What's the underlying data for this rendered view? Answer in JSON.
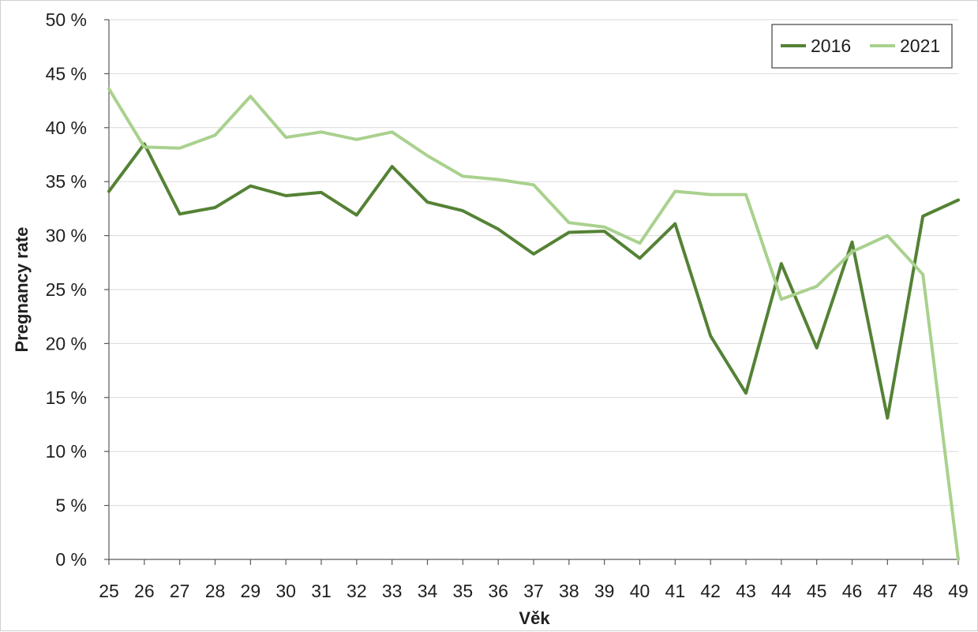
{
  "chart_data": {
    "type": "line",
    "xlabel": "Věk",
    "ylabel": "Pregnancy rate",
    "x": [
      25,
      26,
      27,
      28,
      29,
      30,
      31,
      32,
      33,
      34,
      35,
      36,
      37,
      38,
      39,
      40,
      41,
      42,
      43,
      44,
      45,
      46,
      47,
      48,
      49
    ],
    "x_tick_labels": [
      "25",
      "26",
      "27",
      "28",
      "29",
      "30",
      "31",
      "32",
      "33",
      "34",
      "35",
      "36",
      "37",
      "38",
      "39",
      "40",
      "41",
      "42",
      "43",
      "44",
      "45",
      "46",
      "47",
      "48",
      "49"
    ],
    "ylim": [
      0,
      50
    ],
    "y_ticks": [
      0,
      5,
      10,
      15,
      20,
      25,
      30,
      35,
      40,
      45,
      50
    ],
    "y_tick_labels": [
      "0 %",
      "5 %",
      "10 %",
      "15 %",
      "20 %",
      "25 %",
      "30 %",
      "35 %",
      "40 %",
      "45 %",
      "50 %"
    ],
    "grid": "horizontal",
    "legend": {
      "placement": "top-right",
      "entries": [
        "2016",
        "2021"
      ]
    },
    "series": [
      {
        "name": "2016",
        "color": "#548235",
        "values": [
          34.1,
          38.5,
          32.0,
          32.6,
          34.6,
          33.7,
          34.0,
          31.9,
          36.4,
          33.1,
          32.3,
          30.6,
          28.3,
          30.3,
          30.4,
          27.9,
          31.1,
          20.7,
          15.4,
          27.4,
          19.6,
          29.4,
          13.1,
          31.8,
          33.3
        ]
      },
      {
        "name": "2021",
        "color": "#a9d18e",
        "values": [
          43.6,
          38.2,
          38.1,
          39.3,
          42.9,
          39.1,
          39.6,
          38.9,
          39.6,
          37.4,
          35.5,
          35.2,
          34.7,
          31.2,
          30.8,
          29.3,
          34.1,
          33.8,
          33.8,
          24.1,
          25.3,
          28.5,
          30.0,
          26.4,
          0.0
        ]
      }
    ]
  }
}
